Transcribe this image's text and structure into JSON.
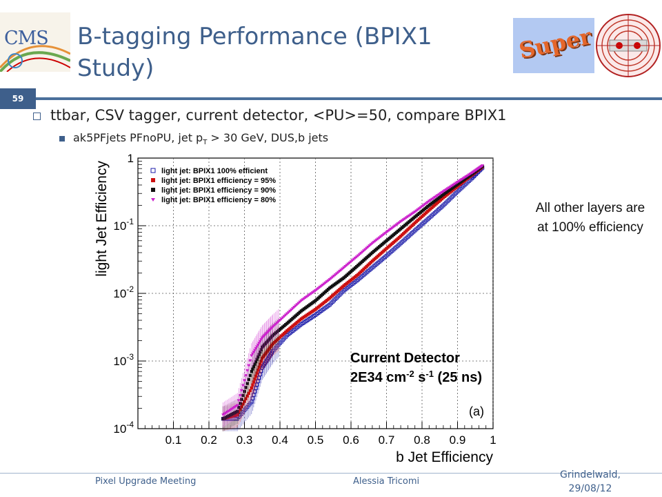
{
  "slide": {
    "page_number": "59",
    "title": "B-tagging Performance (BPIX1 Study)",
    "bullet1": "ttbar, CSV tagger, current detector, <PU>=50, compare BPIX1",
    "bullet2_a": "ak5PFjets PFnoPU, jet p",
    "bullet2_sub": "T",
    "bullet2_b": " > 30 GeV, DUS,b jets",
    "side_note": "All other layers are at 100% efficiency",
    "logos": {
      "cms": "CMS",
      "super": "Super"
    },
    "footer": {
      "left": "Pixel Upgrade Meeting",
      "center": "Alessia Tricomi",
      "right": "Grindelwald, 29/08/12"
    }
  },
  "chart_data": {
    "type": "scatter",
    "xlabel": "b Jet Efficiency",
    "ylabel": "light Jet Efficiency",
    "ylog": true,
    "xlim": [
      0.0,
      1.0
    ],
    "ylim": [
      0.0001,
      1
    ],
    "xticks": [
      "0.1",
      "0.2",
      "0.3",
      "0.4",
      "0.5",
      "0.6",
      "0.7",
      "0.8",
      "0.9",
      "1"
    ],
    "yticks": [
      "10^-4",
      "10^-3",
      "10^-2",
      "10^-1",
      "1"
    ],
    "annotation_1": "Current Detector",
    "annotation_2": "2E34 cm^-2 s^-1 (25 ns)",
    "panel_label": "(a)",
    "colors": {
      "axis": "#000000",
      "grid": "#555555"
    },
    "series": [
      {
        "name": "light jet: BPIX1 100% efficient",
        "marker": "open-square",
        "color": "#1a1aa8",
        "x": [
          0.24,
          0.28,
          0.32,
          0.35,
          0.38,
          0.42,
          0.46,
          0.5,
          0.54,
          0.58,
          0.62,
          0.66,
          0.7,
          0.74,
          0.78,
          0.82,
          0.86,
          0.9,
          0.94,
          0.97
        ],
        "y": [
          0.00014,
          0.00014,
          0.00025,
          0.0008,
          0.0014,
          0.0024,
          0.0035,
          0.0048,
          0.0068,
          0.011,
          0.016,
          0.024,
          0.036,
          0.055,
          0.085,
          0.13,
          0.2,
          0.32,
          0.5,
          0.72
        ]
      },
      {
        "name": "light jet: BPIX1 efficiency = 95%",
        "marker": "filled-square",
        "color": "#cc1111",
        "x": [
          0.24,
          0.28,
          0.32,
          0.35,
          0.38,
          0.42,
          0.46,
          0.5,
          0.54,
          0.58,
          0.62,
          0.66,
          0.7,
          0.74,
          0.78,
          0.82,
          0.86,
          0.9,
          0.94,
          0.97
        ],
        "y": [
          0.00014,
          0.00016,
          0.0004,
          0.0011,
          0.0018,
          0.0028,
          0.0042,
          0.0058,
          0.0085,
          0.013,
          0.019,
          0.03,
          0.046,
          0.07,
          0.11,
          0.17,
          0.26,
          0.38,
          0.56,
          0.74
        ]
      },
      {
        "name": "light jet: BPIX1 efficiency = 90%",
        "marker": "filled-square",
        "color": "#111111",
        "x": [
          0.24,
          0.28,
          0.32,
          0.35,
          0.38,
          0.42,
          0.46,
          0.5,
          0.54,
          0.58,
          0.62,
          0.66,
          0.7,
          0.74,
          0.78,
          0.82,
          0.86,
          0.9,
          0.94,
          0.97
        ],
        "y": [
          0.00014,
          0.00018,
          0.0007,
          0.0016,
          0.0024,
          0.0036,
          0.0055,
          0.0078,
          0.012,
          0.017,
          0.026,
          0.04,
          0.06,
          0.09,
          0.135,
          0.2,
          0.29,
          0.41,
          0.58,
          0.76
        ]
      },
      {
        "name": "light jet: BPIX1 efficiency = 80%",
        "marker": "triangle",
        "color": "#cc22cc",
        "x": [
          0.24,
          0.28,
          0.32,
          0.35,
          0.38,
          0.42,
          0.46,
          0.5,
          0.54,
          0.58,
          0.62,
          0.66,
          0.7,
          0.74,
          0.78,
          0.82,
          0.86,
          0.9,
          0.94,
          0.97
        ],
        "y": [
          0.00016,
          0.00022,
          0.0012,
          0.0022,
          0.0032,
          0.005,
          0.0078,
          0.011,
          0.016,
          0.024,
          0.036,
          0.055,
          0.08,
          0.115,
          0.16,
          0.23,
          0.32,
          0.44,
          0.6,
          0.77
        ]
      }
    ]
  }
}
